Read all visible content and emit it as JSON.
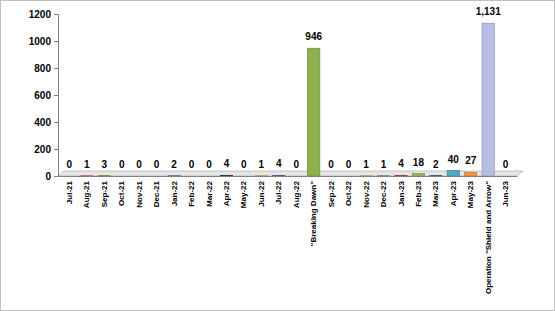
{
  "chart_data": {
    "type": "bar",
    "categories": [
      "Jul-21",
      "Aug-21",
      "Sep-21",
      "Oct-21",
      "Nov-21",
      "Dec-21",
      "Jan-22",
      "Feb-22",
      "Mar-22",
      "Apr-22",
      "May-22",
      "Jun-22",
      "Jul-22",
      "Aug-22",
      "\"Breaking Dawn\"",
      "Sep-22",
      "Oct-22",
      "Nov-22",
      "Dec-22",
      "Jan-23",
      "Feb-23",
      "Mar-23",
      "Apr-23",
      "May-23",
      "Operation \"Shield and Arrow\"",
      "Jun-23"
    ],
    "values": [
      0,
      1,
      3,
      0,
      0,
      0,
      2,
      0,
      0,
      4,
      0,
      1,
      4,
      0,
      946,
      0,
      0,
      1,
      1,
      4,
      18,
      2,
      40,
      27,
      1131,
      0
    ],
    "value_labels": [
      "0",
      "1",
      "3",
      "0",
      "0",
      "0",
      "2",
      "0",
      "0",
      "4",
      "0",
      "1",
      "4",
      "0",
      "946",
      "0",
      "0",
      "1",
      "1",
      "4",
      "18",
      "2",
      "40",
      "27",
      "1,131",
      "0"
    ],
    "colors": [
      "#8064a2",
      "#c0504d",
      "#9bbb59",
      "#1f497d",
      "#4bacc6",
      "#f79646",
      "#8064a2",
      "#c0504d",
      "#9bbb59",
      "#1f497d",
      "#4bacc6",
      "#f79646",
      "#8064a2",
      "#c0504d",
      "#8fb04f",
      "#1f497d",
      "#4bacc6",
      "#f79646",
      "#8064a2",
      "#c0504d",
      "#9bbb59",
      "#1f497d",
      "#4bacc6",
      "#f79646",
      "#b7bde3",
      "#c0504d"
    ],
    "ylim": [
      0,
      1200
    ],
    "yticks": [
      0,
      200,
      400,
      600,
      800,
      1000,
      1200
    ],
    "data_labels": true,
    "grid": false
  }
}
